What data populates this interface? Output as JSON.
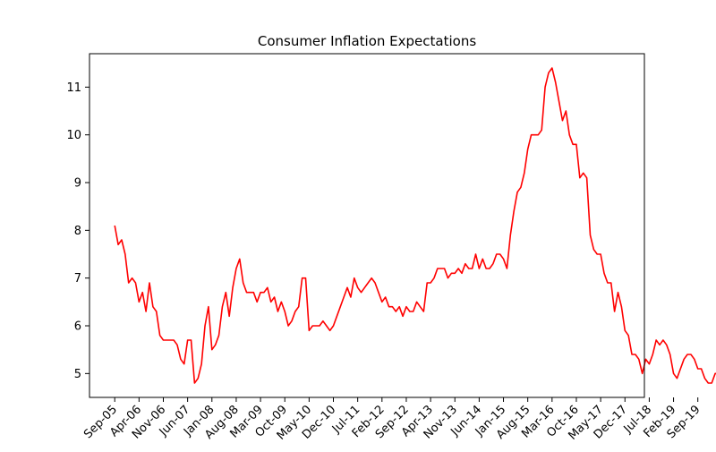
{
  "chart_data": {
    "type": "line",
    "title": "Consumer Inflation Expectations",
    "xlabel": "",
    "ylabel": "",
    "grid": false,
    "line_color": "#ff0000",
    "ylim": [
      4.5,
      11.7
    ],
    "yticks": [
      5,
      6,
      7,
      8,
      9,
      10,
      11
    ],
    "xtick_labels": [
      "Sep-05",
      "Apr-06",
      "Nov-06",
      "Jun-07",
      "Jan-08",
      "Aug-08",
      "Mar-09",
      "Oct-09",
      "May-10",
      "Dec-10",
      "Jul-11",
      "Feb-12",
      "Sep-12",
      "Apr-13",
      "Nov-13",
      "Jun-14",
      "Jan-15",
      "Aug-15",
      "Mar-16",
      "Oct-16",
      "May-17",
      "Dec-17",
      "Jul-18",
      "Feb-19",
      "Sep-19"
    ],
    "x_start": "Sep-05",
    "x_end": "Jan-20",
    "series": [
      {
        "name": "",
        "values": [
          8.1,
          7.7,
          7.8,
          7.5,
          6.9,
          7.0,
          6.9,
          6.5,
          6.7,
          6.3,
          6.9,
          6.4,
          6.3,
          5.8,
          5.7,
          5.7,
          5.7,
          5.7,
          5.6,
          5.3,
          5.2,
          5.7,
          5.7,
          4.8,
          4.9,
          5.2,
          6.0,
          6.4,
          5.5,
          5.6,
          5.8,
          6.4,
          6.7,
          6.2,
          6.8,
          7.2,
          7.4,
          6.9,
          6.7,
          6.7,
          6.7,
          6.5,
          6.7,
          6.7,
          6.8,
          6.5,
          6.6,
          6.3,
          6.5,
          6.3,
          6.0,
          6.1,
          6.3,
          6.4,
          7.0,
          7.0,
          5.9,
          6.0,
          6.0,
          6.0,
          6.1,
          6.0,
          5.9,
          6.0,
          6.2,
          6.4,
          6.6,
          6.8,
          6.6,
          7.0,
          6.8,
          6.7,
          6.8,
          6.9,
          7.0,
          6.9,
          6.7,
          6.5,
          6.6,
          6.4,
          6.4,
          6.3,
          6.4,
          6.2,
          6.4,
          6.3,
          6.3,
          6.5,
          6.4,
          6.3,
          6.9,
          6.9,
          7.0,
          7.2,
          7.2,
          7.2,
          7.0,
          7.1,
          7.1,
          7.2,
          7.1,
          7.3,
          7.2,
          7.2,
          7.5,
          7.2,
          7.4,
          7.2,
          7.2,
          7.3,
          7.5,
          7.5,
          7.4,
          7.2,
          7.9,
          8.4,
          8.8,
          8.9,
          9.2,
          9.7,
          10.0,
          10.0,
          10.0,
          10.1,
          11.0,
          11.3,
          11.4,
          11.1,
          10.7,
          10.3,
          10.5,
          10.0,
          9.8,
          9.8,
          9.1,
          9.2,
          9.1,
          7.9,
          7.6,
          7.5,
          7.5,
          7.1,
          6.9,
          6.9,
          6.3,
          6.7,
          6.4,
          5.9,
          5.8,
          5.4,
          5.4,
          5.3,
          5.0,
          5.3,
          5.2,
          5.4,
          5.7,
          5.6,
          5.7,
          5.6,
          5.4,
          5.0,
          4.9,
          5.1,
          5.3,
          5.4,
          5.4,
          5.3,
          5.1,
          5.1,
          4.9,
          4.8,
          4.8,
          5.0,
          5.0,
          4.8
        ]
      }
    ]
  }
}
